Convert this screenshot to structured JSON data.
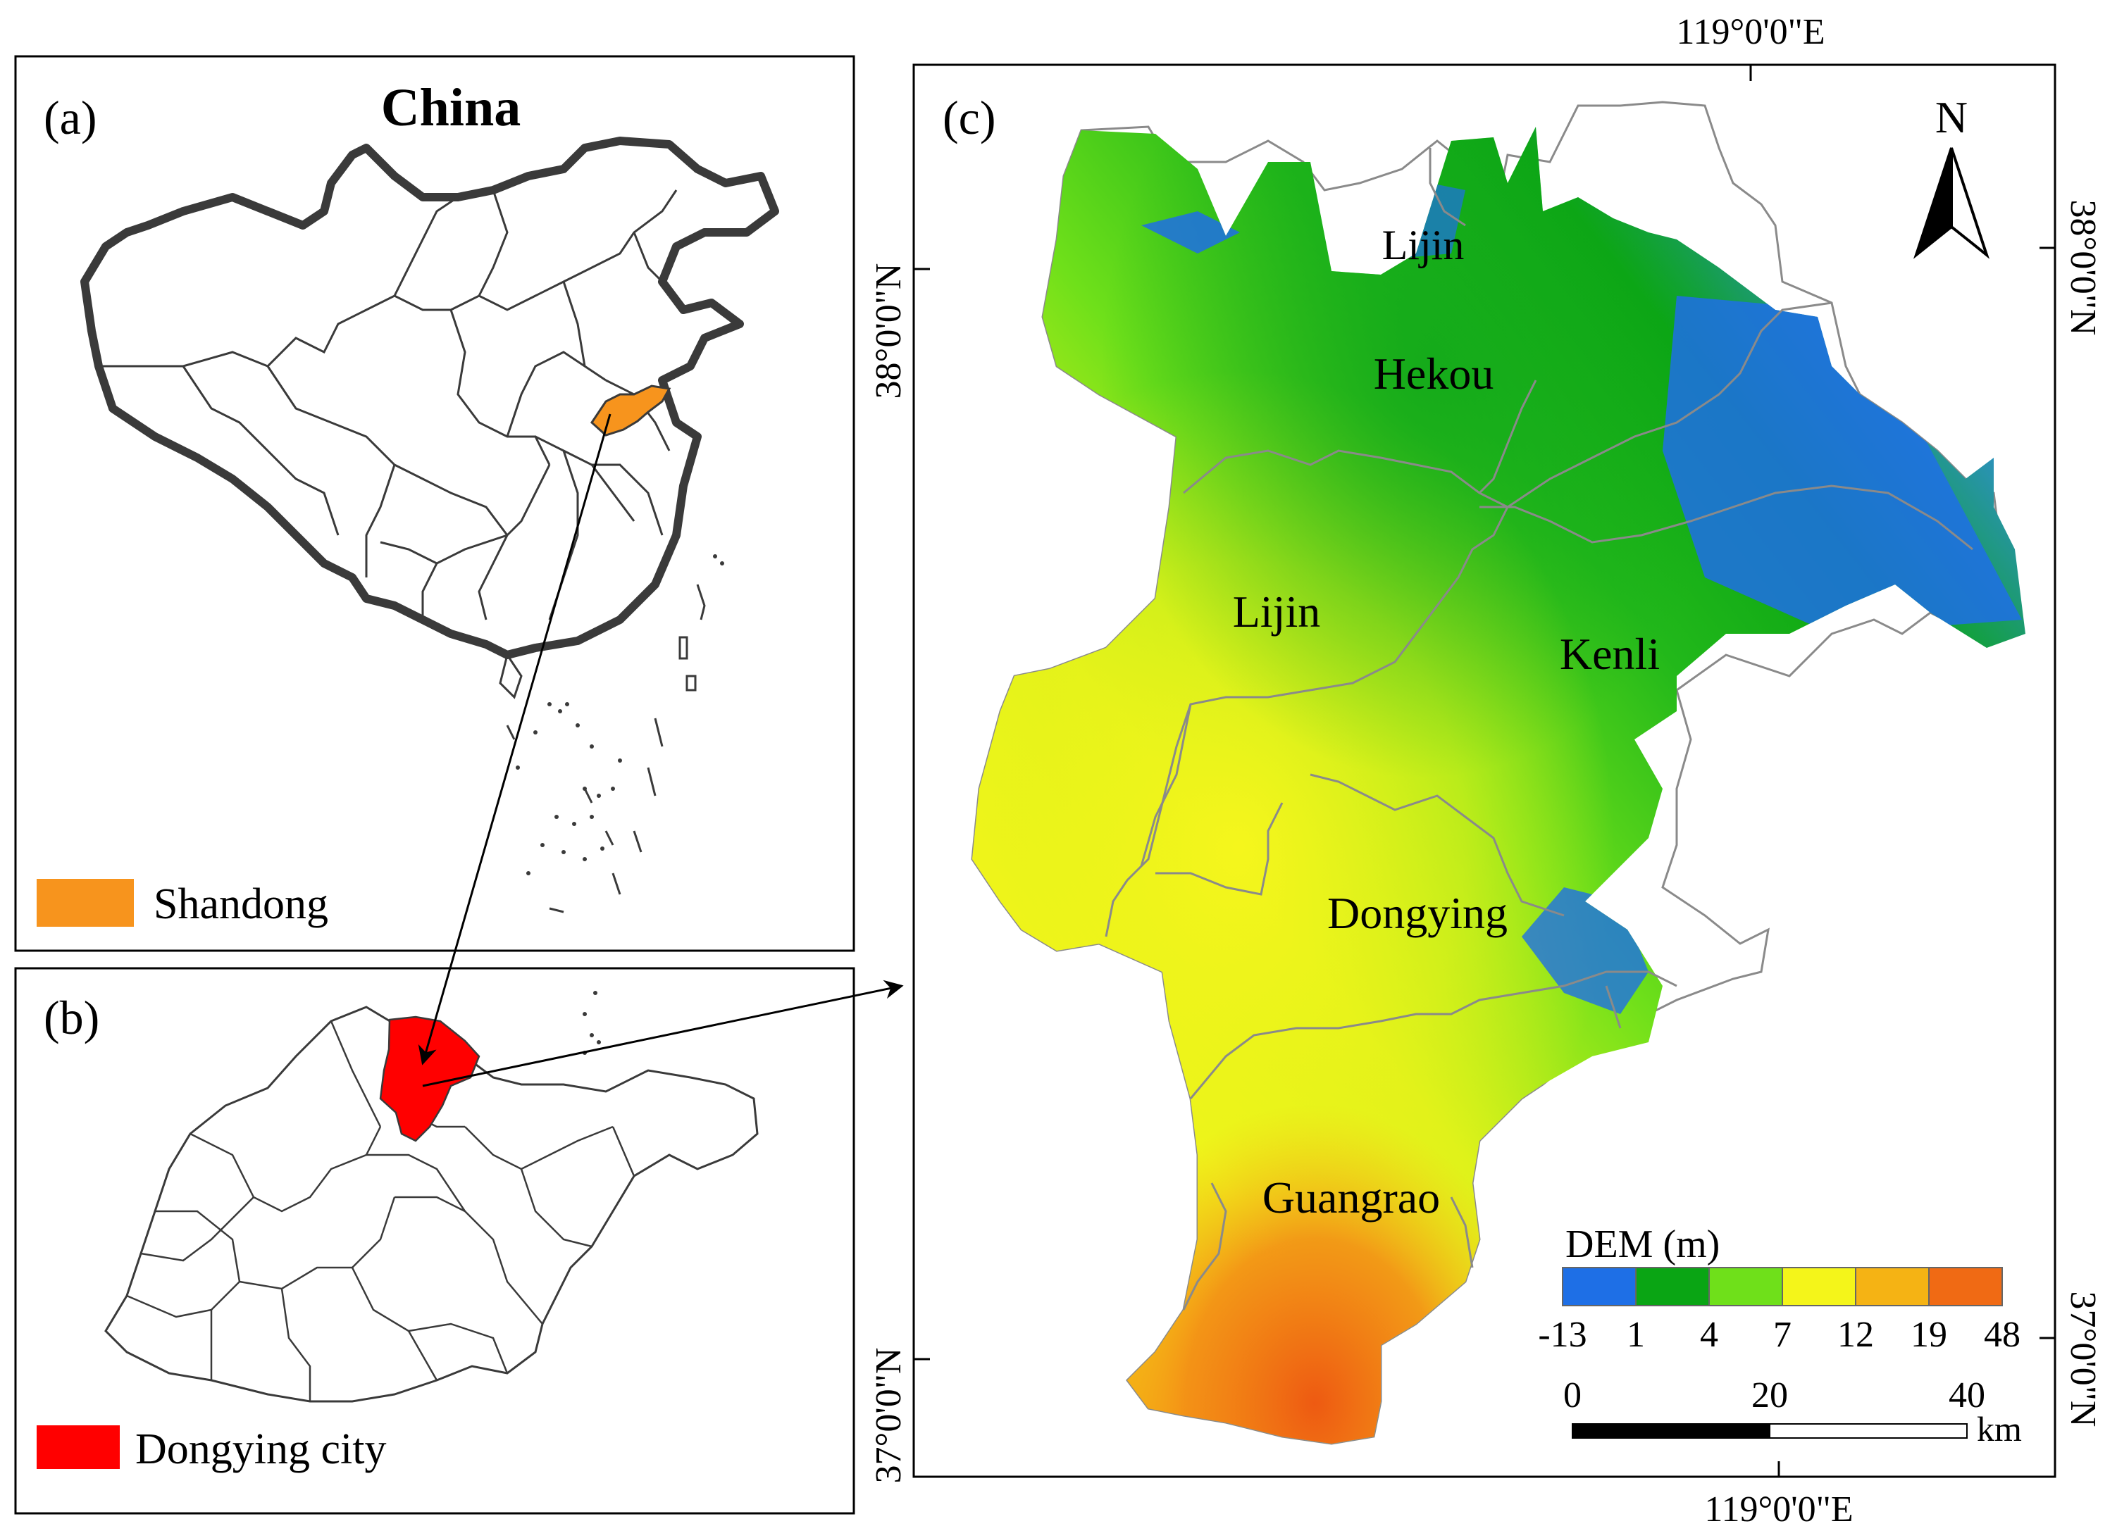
{
  "panels": {
    "a": {
      "tag": "(a)",
      "title": "China",
      "legend": {
        "label": "Shandong",
        "color": "#F7941D"
      }
    },
    "b": {
      "tag": "(b)",
      "legend": {
        "label": "Dongying city",
        "color": "#FF0000"
      }
    },
    "c": {
      "tag": "(c)",
      "north": "N",
      "lon_top": "119°0'0\"E",
      "lon_bottom": "119°0'0\"E",
      "lat_left_top": "38°0'0\"N",
      "lat_left_bottom": "37°0'0\"N",
      "lat_right_top": "38°0'0\"N",
      "lat_right_bottom": "37°0'0\"N",
      "districts": {
        "north": "Lijin",
        "hekou": "Hekou",
        "lijin": "Lijin",
        "kenli": "Kenli",
        "dongying": "Dongying",
        "guangrao": "Guangrao"
      },
      "dem_legend": {
        "title": "DEM (m)",
        "classes": [
          {
            "color": "#1E6FE6"
          },
          {
            "color": "#0AA514"
          },
          {
            "color": "#6FE01A"
          },
          {
            "color": "#F4F51A"
          },
          {
            "color": "#F5B314"
          },
          {
            "color": "#F06A14"
          }
        ],
        "breaks": [
          "-13",
          "1",
          "4",
          "7",
          "12",
          "19",
          "48"
        ]
      },
      "scale_bar": {
        "ticks": [
          "0",
          "20",
          "40"
        ],
        "unit": "km"
      }
    }
  }
}
